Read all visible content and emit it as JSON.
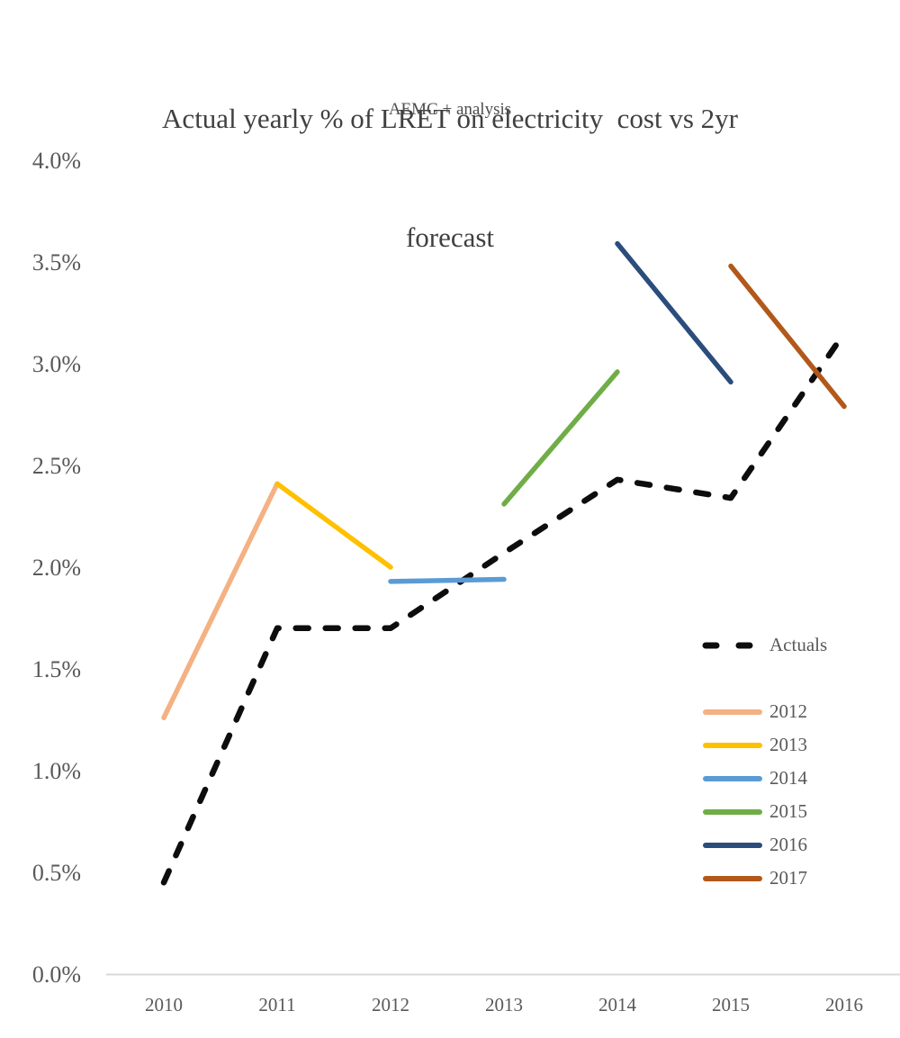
{
  "header": {
    "title_line1": "Actual yearly % of LRET on electricity  cost vs 2yr",
    "title_line2": "forecast",
    "subtitle": "AEMC + analysis"
  },
  "chart_data": {
    "type": "line",
    "title": "Actual yearly % of LRET on electricity cost vs 2yr forecast",
    "subtitle": "AEMC + analysis",
    "units": "percent of electricity cost",
    "xlabel": "",
    "ylabel": "",
    "xlim": [
      2009.5,
      2016.5
    ],
    "ylim": [
      0,
      4.0
    ],
    "grid": false,
    "legend_position": "right-middle",
    "x_ticks": [
      {
        "label": "2010",
        "value": 2010
      },
      {
        "label": "2011",
        "value": 2011
      },
      {
        "label": "2012",
        "value": 2012
      },
      {
        "label": "2013",
        "value": 2013
      },
      {
        "label": "2014",
        "value": 2014
      },
      {
        "label": "2015",
        "value": 2015
      },
      {
        "label": "2016",
        "value": 2016
      }
    ],
    "y_ticks": [
      {
        "label": "0.0%",
        "value": 0.0
      },
      {
        "label": "0.5%",
        "value": 0.5
      },
      {
        "label": "1.0%",
        "value": 1.0
      },
      {
        "label": "1.5%",
        "value": 1.5
      },
      {
        "label": "2.0%",
        "value": 2.0
      },
      {
        "label": "2.5%",
        "value": 2.5
      },
      {
        "label": "3.0%",
        "value": 3.0
      },
      {
        "label": "3.5%",
        "value": 3.5
      },
      {
        "label": "4.0%",
        "value": 4.0
      }
    ],
    "series": [
      {
        "name": "Actuals",
        "color": "#0d0d0d",
        "dashed": true,
        "points": [
          [
            2010,
            0.45
          ],
          [
            2011,
            1.7
          ],
          [
            2012,
            1.7
          ],
          [
            2013,
            2.07
          ],
          [
            2014,
            2.43
          ],
          [
            2015,
            2.34
          ],
          [
            2016,
            3.15
          ]
        ]
      },
      {
        "name": "2012",
        "color": "#F4B183",
        "dashed": false,
        "points": [
          [
            2010,
            1.26
          ],
          [
            2011,
            2.41
          ]
        ]
      },
      {
        "name": "2013",
        "color": "#FFC000",
        "dashed": false,
        "points": [
          [
            2011,
            2.41
          ],
          [
            2012,
            2.0
          ]
        ]
      },
      {
        "name": "2014",
        "color": "#5B9BD5",
        "dashed": false,
        "points": [
          [
            2012,
            1.93
          ],
          [
            2013,
            1.94
          ]
        ]
      },
      {
        "name": "2015",
        "color": "#70AD47",
        "dashed": false,
        "points": [
          [
            2013,
            2.31
          ],
          [
            2014,
            2.96
          ]
        ]
      },
      {
        "name": "2016",
        "color": "#2A4D7C",
        "dashed": false,
        "points": [
          [
            2014,
            3.59
          ],
          [
            2015,
            2.91
          ]
        ]
      },
      {
        "name": "2017",
        "color": "#B2581A",
        "dashed": false,
        "points": [
          [
            2015,
            3.48
          ],
          [
            2016,
            2.79
          ]
        ]
      }
    ],
    "colors": {
      "axis_line": "#D9D9D9",
      "tick_label": "#595959",
      "title_text": "#404040"
    }
  }
}
